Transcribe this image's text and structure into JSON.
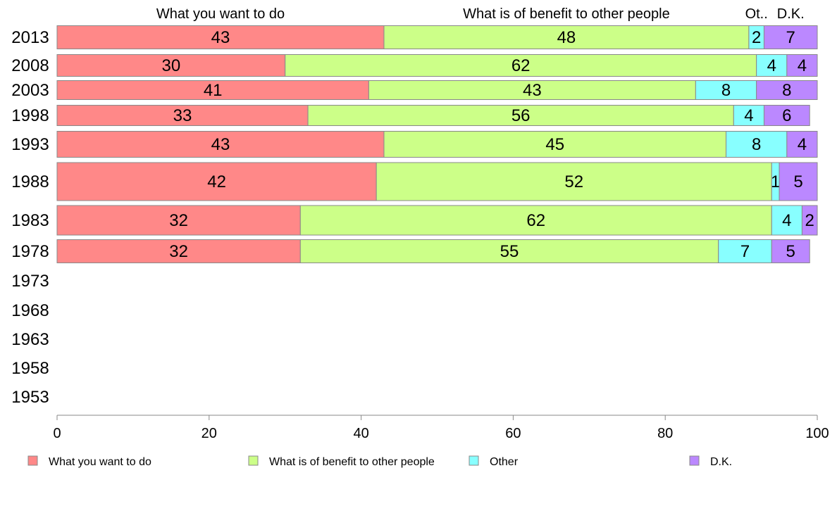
{
  "chart_data": {
    "type": "bar",
    "orientation": "horizontal",
    "stacked": true,
    "xlim": [
      0,
      100
    ],
    "x_ticks": [
      0,
      20,
      40,
      60,
      80,
      100
    ],
    "categories": [
      "2013",
      "2008",
      "2003",
      "1998",
      "1993",
      "1988",
      "1983",
      "1978",
      "1973",
      "1968",
      "1963",
      "1958",
      "1953"
    ],
    "series": [
      {
        "name": "What you want to do",
        "short_label": "What you want to do",
        "color": "#ff8888",
        "values": [
          43,
          30,
          41,
          33,
          43,
          42,
          32,
          32,
          null,
          null,
          null,
          null,
          null
        ]
      },
      {
        "name": "What is of benefit to other people",
        "short_label": "What is of benefit to other people",
        "color": "#ccff88",
        "values": [
          48,
          62,
          43,
          56,
          45,
          52,
          62,
          55,
          null,
          null,
          null,
          null,
          null
        ]
      },
      {
        "name": "Other",
        "short_label": "Ot..",
        "color": "#88ffff",
        "values": [
          2,
          4,
          8,
          4,
          8,
          1,
          4,
          7,
          null,
          null,
          null,
          null,
          null
        ]
      },
      {
        "name": "D.K.",
        "short_label": "D.K.",
        "color": "#bb88ff",
        "values": [
          7,
          4,
          8,
          6,
          4,
          5,
          2,
          5,
          null,
          null,
          null,
          null,
          null
        ]
      }
    ],
    "grid": false,
    "legend_position": "bottom"
  }
}
